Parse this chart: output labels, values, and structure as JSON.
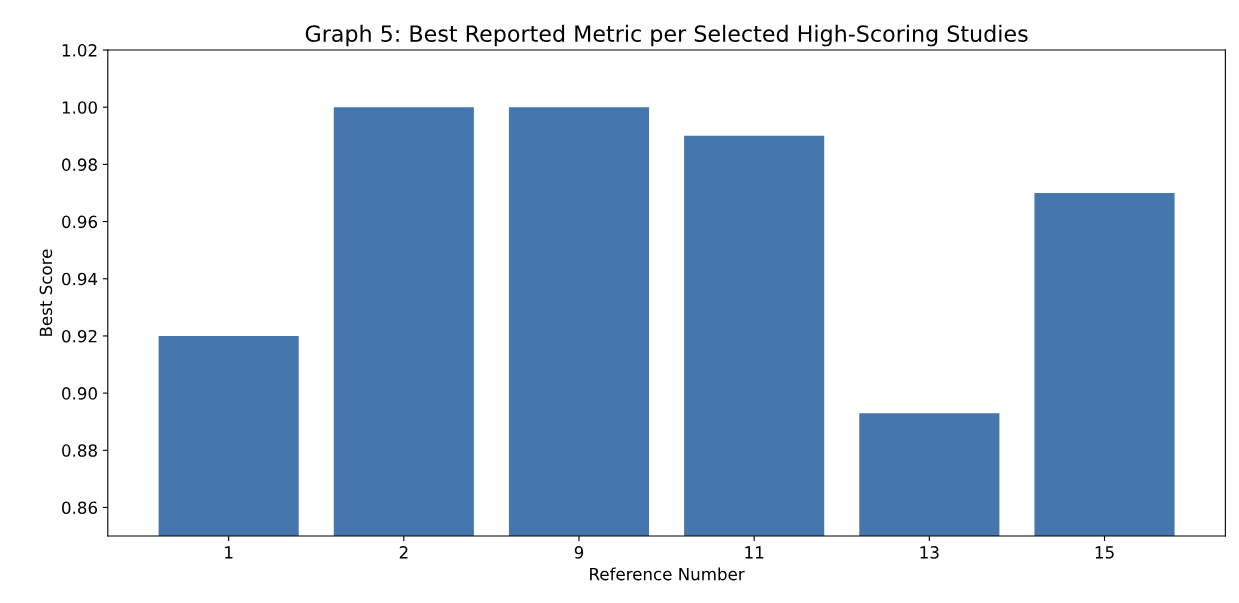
{
  "chart_data": {
    "type": "bar",
    "title": "Graph 5: Best Reported Metric per Selected High-Scoring Studies",
    "xlabel": "Reference Number",
    "ylabel": "Best Score",
    "categories": [
      "1",
      "2",
      "9",
      "11",
      "13",
      "15"
    ],
    "values": [
      0.92,
      1.0,
      1.0,
      0.99,
      0.893,
      0.97
    ],
    "color": "#4576ad",
    "ylim": [
      0.85,
      1.02
    ],
    "yticks": [
      {
        "value": 0.86,
        "label": "0.86"
      },
      {
        "value": 0.88,
        "label": "0.88"
      },
      {
        "value": 0.9,
        "label": "0.90"
      },
      {
        "value": 0.92,
        "label": "0.92"
      },
      {
        "value": 0.94,
        "label": "0.94"
      },
      {
        "value": 0.96,
        "label": "0.96"
      },
      {
        "value": 0.98,
        "label": "0.98"
      },
      {
        "value": 1.0,
        "label": "1.00"
      },
      {
        "value": 1.02,
        "label": "1.02"
      }
    ]
  }
}
